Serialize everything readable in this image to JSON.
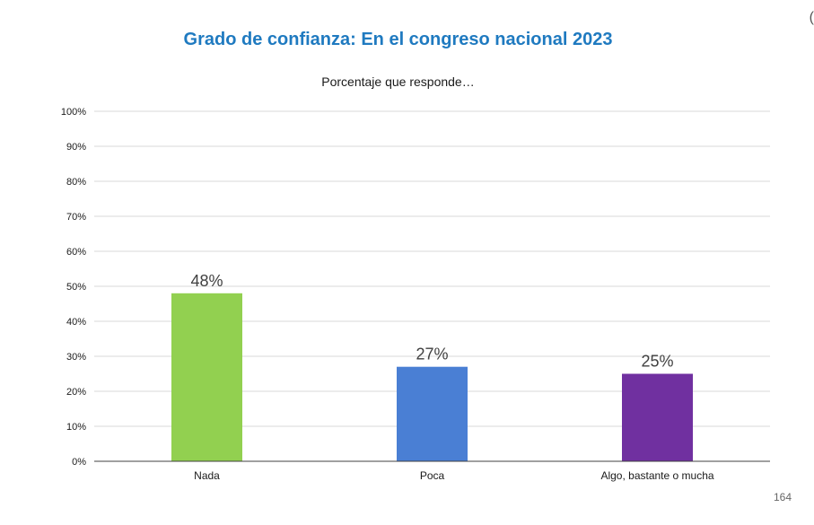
{
  "chart_data": {
    "type": "bar",
    "title": "Grado de confianza: En el congreso nacional 2023",
    "subtitle": "Porcentaje que responde…",
    "categories": [
      "Nada",
      "Poca",
      "Algo, bastante o mucha"
    ],
    "values": [
      48,
      27,
      25
    ],
    "data_labels": [
      "48%",
      "27%",
      "25%"
    ],
    "colors": [
      "#92d050",
      "#4a7fd4",
      "#7030a0"
    ],
    "ylim": [
      0,
      100
    ],
    "yticks": [
      0,
      10,
      20,
      30,
      40,
      50,
      60,
      70,
      80,
      90,
      100
    ],
    "ytick_labels": [
      "0%",
      "10%",
      "20%",
      "30%",
      "40%",
      "50%",
      "60%",
      "70%",
      "80%",
      "90%",
      "100%"
    ],
    "grid": true,
    "legend": "none"
  },
  "page": {
    "number": "164",
    "corner_mark": "("
  },
  "colors": {
    "title": "#1f7ac0",
    "gridline": "#d9d9d9",
    "axis": "#404040"
  }
}
